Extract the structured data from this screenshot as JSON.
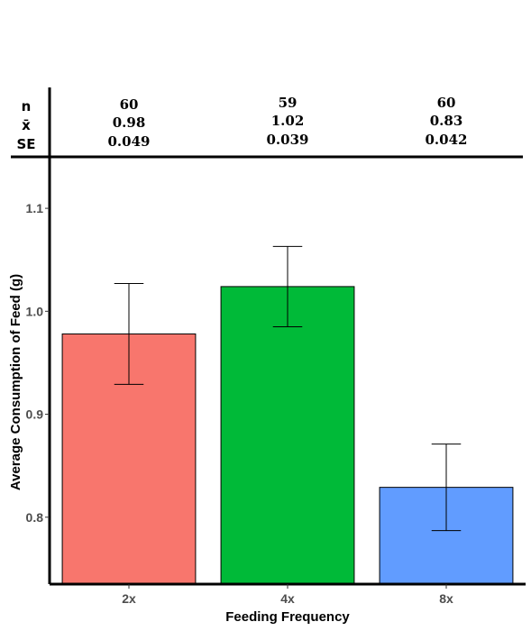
{
  "chart_data": {
    "type": "bar",
    "categories": [
      "2x",
      "4x",
      "8x"
    ],
    "values": [
      0.978,
      1.024,
      0.829
    ],
    "error_low": [
      0.929,
      0.985,
      0.787
    ],
    "error_high": [
      1.027,
      1.063,
      0.871
    ],
    "colors": [
      "#F8766D",
      "#00BA38",
      "#619CFF"
    ],
    "xlabel": "Feeding Frequency",
    "ylabel": "Average Consumption of Feed (g)",
    "ylim": [
      0.735,
      1.15
    ],
    "yticks": [
      0.8,
      0.9,
      1.0,
      1.1
    ],
    "ytick_labels": [
      "0.8",
      "0.9",
      "1.0",
      "1.1"
    ],
    "grid": false,
    "stats_table": {
      "row_labels": [
        "n",
        "x̄",
        "SE"
      ],
      "columns": [
        [
          "60",
          "0.98",
          "0.049"
        ],
        [
          "59",
          "1.02",
          "0.039"
        ],
        [
          "60",
          "0.83",
          "0.042"
        ]
      ]
    }
  }
}
